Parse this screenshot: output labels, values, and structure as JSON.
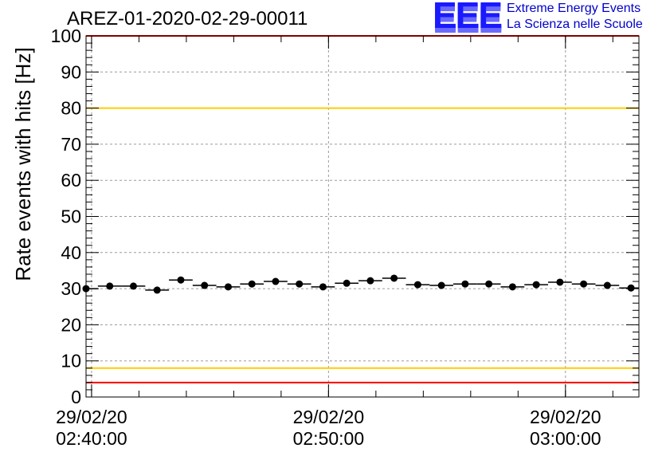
{
  "chart_data": {
    "type": "scatter",
    "title": "AREZ-01-2020-02-29-00011",
    "ylabel": "Rate events with hits [Hz]",
    "xlabel": "",
    "ylim": [
      0,
      100
    ],
    "yticks": [
      "0",
      "10",
      "20",
      "30",
      "40",
      "50",
      "60",
      "70",
      "80",
      "90",
      "100"
    ],
    "xlim": [
      "2020-02-29T02:39:46",
      "2020-02-29T03:03:06"
    ],
    "xticks": [
      {
        "t": "2020-02-29T02:40:00",
        "date": "29/02/20",
        "time": "02:40:00"
      },
      {
        "t": "2020-02-29T02:50:00",
        "date": "29/02/20",
        "time": "02:50:00"
      },
      {
        "t": "2020-02-29T03:00:00",
        "date": "29/02/20",
        "time": "03:00:00"
      }
    ],
    "grid": true,
    "series": [
      {
        "x": [
          "2020-02-29T02:39:46",
          "2020-02-29T02:40:46",
          "2020-02-29T02:41:46",
          "2020-02-29T02:42:46",
          "2020-02-29T02:43:46",
          "2020-02-29T02:44:46",
          "2020-02-29T02:45:46",
          "2020-02-29T02:46:46",
          "2020-02-29T02:47:46",
          "2020-02-29T02:48:46",
          "2020-02-29T02:49:46",
          "2020-02-29T02:50:46",
          "2020-02-29T02:51:46",
          "2020-02-29T02:52:46",
          "2020-02-29T02:53:46",
          "2020-02-29T02:54:46",
          "2020-02-29T02:55:46",
          "2020-02-29T02:56:46",
          "2020-02-29T02:57:46",
          "2020-02-29T02:58:46",
          "2020-02-29T02:59:46",
          "2020-02-29T03:00:46",
          "2020-02-29T03:01:46",
          "2020-02-29T03:02:46"
        ],
        "y": [
          30.0,
          30.7,
          30.7,
          29.6,
          32.4,
          30.9,
          30.5,
          31.3,
          32.0,
          31.3,
          30.5,
          31.5,
          32.2,
          32.9,
          31.1,
          30.9,
          31.3,
          31.3,
          30.5,
          31.1,
          31.8,
          31.3,
          30.9,
          30.2
        ],
        "color": "#000000"
      }
    ],
    "reference_lines": [
      {
        "y": 4,
        "color": "#ff0000"
      },
      {
        "y": 8,
        "color": "#ffcc00"
      },
      {
        "y": 80,
        "color": "#ffcc00"
      },
      {
        "y": 100,
        "color": "#ff0000"
      }
    ]
  },
  "logo": {
    "mark": "EEE",
    "line1": "Extreme Energy Events",
    "line2": "La Scienza nelle Scuole",
    "color": "#0000cc"
  }
}
